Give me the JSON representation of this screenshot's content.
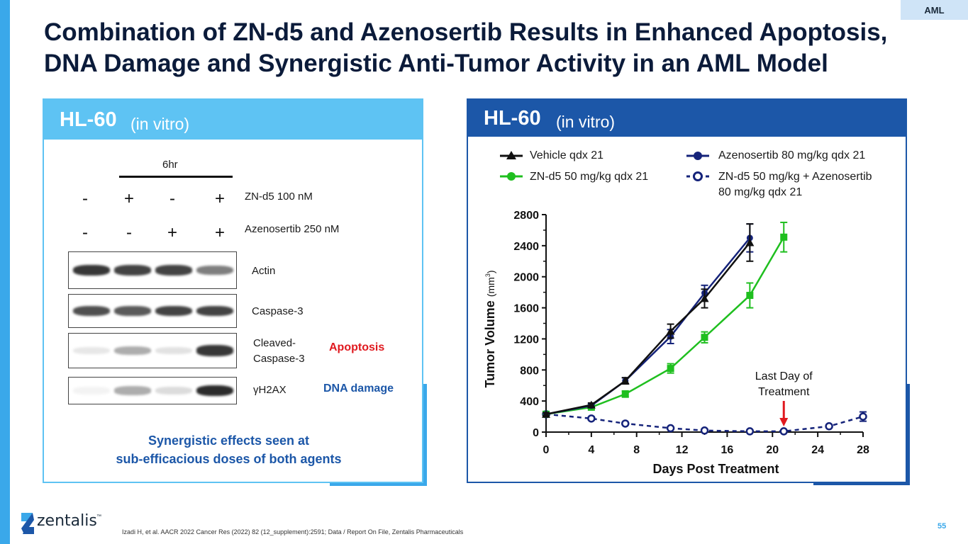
{
  "tag": "AML",
  "title": {
    "line1": "Combination of ZN-d5 and Azenosertib Results in Enhanced Apoptosis,",
    "line2": "DNA Damage and Synergistic Anti-Tumor Activity in an AML Model"
  },
  "left_panel": {
    "heading": "HL-60",
    "heading_sub": "(in vitro)",
    "timepoint": "6hr",
    "treatments": [
      {
        "label": "ZN-d5 100 nM",
        "signs": [
          "-",
          "+",
          "-",
          "+"
        ]
      },
      {
        "label": "Azenosertib 250 nM",
        "signs": [
          "-",
          "-",
          "+",
          "+"
        ]
      }
    ],
    "blots": [
      {
        "label": "Actin",
        "effect": "",
        "intensity": [
          0.85,
          0.8,
          0.8,
          0.55
        ]
      },
      {
        "label": "Caspase-3",
        "effect": "",
        "intensity": [
          0.75,
          0.7,
          0.8,
          0.8
        ]
      },
      {
        "label": "Cleaved-\nCaspase-3",
        "effect": "Apoptosis",
        "intensity": [
          0.1,
          0.35,
          0.12,
          0.85
        ]
      },
      {
        "label": "γH2AX",
        "effect": "DNA damage",
        "intensity": [
          0.05,
          0.35,
          0.15,
          0.9
        ]
      }
    ],
    "effect_colors": {
      "Apoptosis": "#e0191f",
      "DNA damage": "#1c57a8"
    },
    "note_line1": "Synergistic effects seen at",
    "note_line2": "sub-efficacious doses of both agents"
  },
  "right_panel": {
    "heading": "HL-60",
    "heading_sub": "(in vitro)"
  },
  "chart_data": {
    "type": "line",
    "xlabel": "Days Post Treatment",
    "ylabel": "Tumor Volume",
    "ylabel_unit": "(mm",
    "ylabel_exp": "3",
    "ylabel_close": ")",
    "xlim": [
      0,
      28
    ],
    "ylim": [
      0,
      2800
    ],
    "xticks": [
      0,
      4,
      8,
      12,
      16,
      20,
      24,
      28
    ],
    "yticks": [
      0,
      400,
      800,
      1200,
      1600,
      2000,
      2400,
      2800
    ],
    "series": [
      {
        "name": "Vehicle qdx 21",
        "marker": "triangle",
        "color": "#111111",
        "dashed": false,
        "x": [
          0,
          4,
          7,
          11,
          14,
          18
        ],
        "y": [
          230,
          350,
          660,
          1300,
          1720,
          2440
        ],
        "err": [
          20,
          25,
          40,
          90,
          120,
          240
        ]
      },
      {
        "name": "Azenosertib 80 mg/kg qdx 21",
        "marker": "circle",
        "color": "#15237a",
        "dashed": false,
        "x": [
          0,
          4,
          7,
          11,
          14,
          18
        ],
        "y": [
          230,
          340,
          660,
          1230,
          1790,
          2500
        ],
        "err": [
          20,
          25,
          40,
          90,
          100,
          180
        ]
      },
      {
        "name": "ZN-d5 50 mg/kg qdx 21",
        "marker": "square",
        "color": "#1fbf1f",
        "dashed": false,
        "x": [
          0,
          4,
          7,
          11,
          14,
          18,
          21
        ],
        "y": [
          230,
          320,
          490,
          820,
          1220,
          1760,
          2510
        ],
        "err": [
          20,
          25,
          40,
          60,
          70,
          160,
          190
        ]
      },
      {
        "name": "ZN-d5 50 mg/kg + Azenosertib\n80 mg/kg qdx 21",
        "marker": "open-circle",
        "color": "#15237a",
        "dashed": true,
        "x": [
          0,
          4,
          7,
          11,
          14,
          18,
          21,
          25,
          28
        ],
        "y": [
          230,
          175,
          110,
          50,
          20,
          10,
          10,
          75,
          200
        ],
        "err": [
          15,
          20,
          15,
          12,
          10,
          8,
          8,
          20,
          60
        ]
      }
    ],
    "annotation": {
      "text_line1": "Last Day of",
      "text_line2": "Treatment",
      "x": 21,
      "arrow_color": "#e0191f"
    }
  },
  "footer": "Izadi H, et al. AACR 2022 Cancer Res (2022) 82 (12_supplement):2591;  Data / Report On File, Zentalis Pharmaceuticals",
  "page_number": "55",
  "logo_text": "zentalis",
  "logo_mark": "™"
}
